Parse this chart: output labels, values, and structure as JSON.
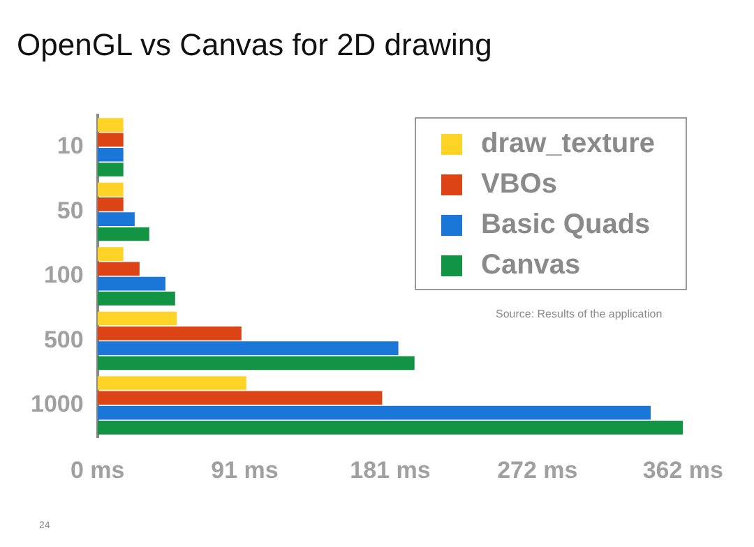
{
  "chart_data": {
    "type": "bar",
    "orientation": "horizontal",
    "title": "OpenGL vs Canvas for 2D drawing",
    "categories": [
      "10",
      "50",
      "100",
      "500",
      "1000"
    ],
    "series": [
      {
        "name": "draw_texture",
        "color": "#fdd325",
        "values": [
          16,
          16,
          16,
          49,
          92
        ]
      },
      {
        "name": "VBOs",
        "color": "#dc4415",
        "values": [
          16,
          16,
          26,
          89,
          176
        ]
      },
      {
        "name": "Basic Quads",
        "color": "#1a77d8",
        "values": [
          16,
          23,
          42,
          186,
          342
        ]
      },
      {
        "name": "Canvas",
        "color": "#139444",
        "values": [
          16,
          32,
          48,
          196,
          362
        ]
      }
    ],
    "xlim": [
      0,
      362
    ],
    "xticks": [
      {
        "value": 0,
        "label": "0 ms"
      },
      {
        "value": 91,
        "label": "91 ms"
      },
      {
        "value": 181,
        "label": "181 ms"
      },
      {
        "value": 272,
        "label": "272 ms"
      },
      {
        "value": 362,
        "label": "362 ms"
      }
    ],
    "grid": false,
    "legend": "top right",
    "annotations": [
      "Source: Results of the application",
      "24"
    ]
  }
}
